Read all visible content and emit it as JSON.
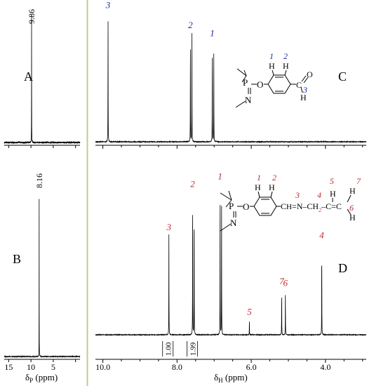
{
  "chart_data": [
    {
      "type": "line",
      "panel": "A",
      "peak_label": "9.86",
      "peaks": [
        {
          "x": 9.86,
          "height": 0.96
        }
      ],
      "xlim": [
        16,
        -1
      ],
      "baseline": 0.05
    },
    {
      "type": "line",
      "panel": "B",
      "peak_label": "8.16",
      "peaks": [
        {
          "x": 8.16,
          "height": 0.95
        }
      ],
      "xlim": [
        16,
        -1
      ],
      "xticks": [
        15,
        10,
        5
      ],
      "xlabel": "δP (ppm)"
    },
    {
      "type": "line",
      "panel": "C",
      "peaks": [
        {
          "x": 9.86,
          "height": 0.97,
          "label": "3"
        },
        {
          "x": 7.64,
          "height": 0.82,
          "label": "2"
        },
        {
          "x": 7.6,
          "height": 0.86,
          "label": ""
        },
        {
          "x": 7.05,
          "height": 0.76,
          "label": "1"
        },
        {
          "x": 7.01,
          "height": 0.71,
          "label": ""
        }
      ],
      "xlim": [
        10.2,
        2.9
      ],
      "peak_labels": [
        "1",
        "2",
        "3"
      ],
      "structure_labels": {
        "h1": "1",
        "h2": "2",
        "h3": "3",
        "P": "P",
        "O": "O",
        "N": "N",
        "C": "C",
        "H": "H"
      }
    },
    {
      "type": "line",
      "panel": "D",
      "peaks": [
        {
          "x": 8.22,
          "height": 0.63,
          "label": "3"
        },
        {
          "x": 7.58,
          "height": 0.9,
          "label": "2"
        },
        {
          "x": 7.54,
          "height": 0.88,
          "label": ""
        },
        {
          "x": 6.84,
          "height": 0.95,
          "label": "1"
        },
        {
          "x": 6.8,
          "height": 0.85,
          "label": ""
        },
        {
          "x": 6.05,
          "height": 0.1,
          "label": "5"
        },
        {
          "x": 5.18,
          "height": 0.29,
          "label": "7"
        },
        {
          "x": 5.08,
          "height": 0.28,
          "label": "6"
        },
        {
          "x": 4.1,
          "height": 0.58,
          "label": "4"
        }
      ],
      "integrals": [
        "1.00",
        "1.99"
      ],
      "xlim": [
        10.2,
        2.9
      ],
      "xticks": [
        10.0,
        8.0,
        6.0,
        4.0
      ],
      "xtick_labels": [
        "10.0",
        "8.0",
        "6.0",
        "4.0"
      ],
      "xlabel": "δH (ppm)",
      "structure_labels": {
        "h1": "1",
        "h2": "2",
        "h3": "3",
        "h4": "4",
        "h5": "5",
        "h6": "6",
        "h7": "7",
        "sub2": "2",
        "P": "P",
        "O": "O",
        "N": "N",
        "H": "H"
      }
    }
  ],
  "panel_letters": {
    "A": "A",
    "B": "B",
    "C": "C",
    "D": "D"
  },
  "colors": {
    "divider": "#c9c98a",
    "label_red": "#c0282d",
    "label_blue": "#1c2aa0"
  }
}
